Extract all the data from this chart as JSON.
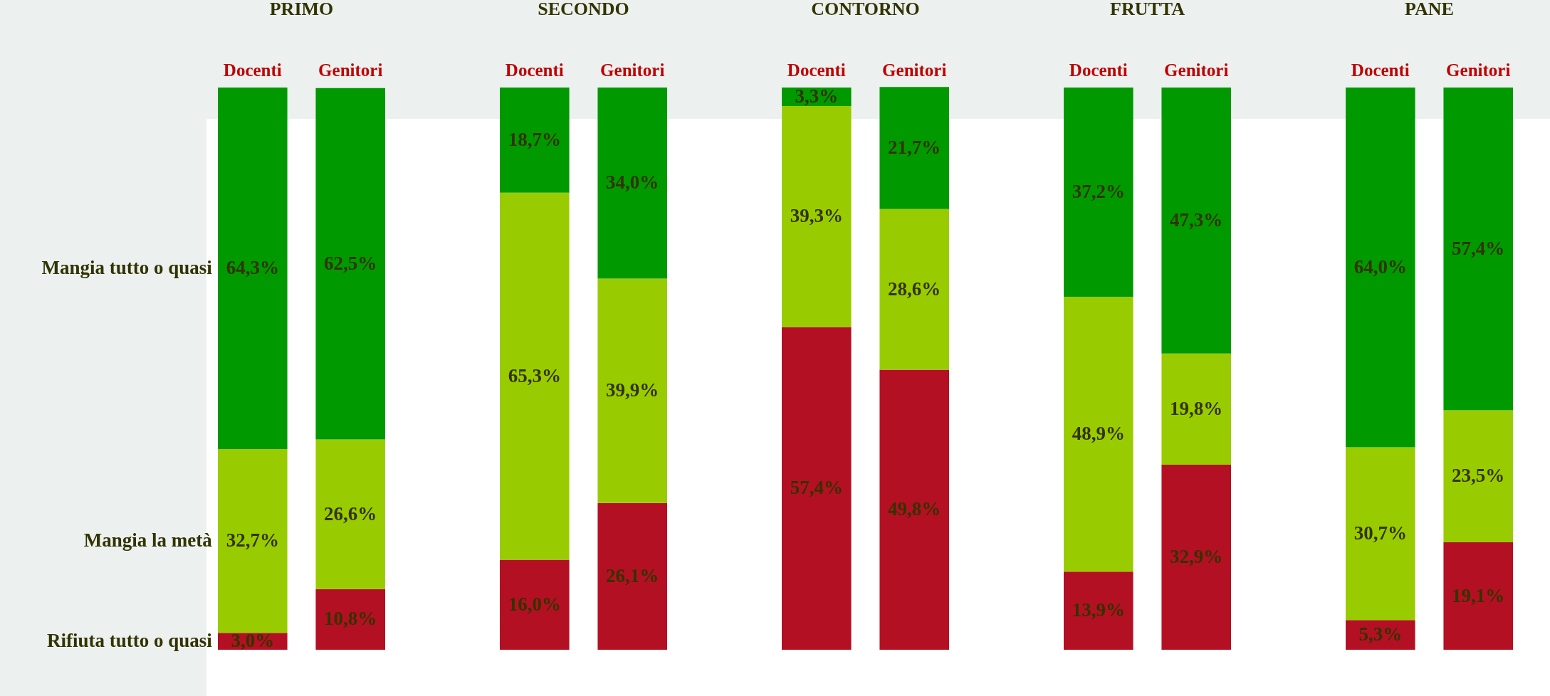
{
  "chart_data": [
    {
      "type": "bar",
      "stacked": true,
      "title": "PRIMO",
      "categories": [
        "Docenti",
        "Genitori"
      ],
      "ylim": [
        0,
        100
      ],
      "tick_labels": "x",
      "series": [
        {
          "name": "Rifiuta tutto o quasi",
          "color": "#b41023",
          "values": [
            3.0,
            10.8
          ],
          "value_labels": [
            "3,0%",
            "10,8%"
          ]
        },
        {
          "name": "Mangia la metà",
          "color": "#99cc00",
          "values": [
            32.7,
            26.6
          ],
          "value_labels": [
            "32,7%",
            "26,6%"
          ]
        },
        {
          "name": "Mangia tutto o quasi",
          "color": "#009900",
          "values": [
            64.3,
            62.5
          ],
          "value_labels": [
            "64,3%",
            "62,5%"
          ]
        }
      ]
    },
    {
      "type": "bar",
      "stacked": true,
      "title": "SECONDO",
      "categories": [
        "Docenti",
        "Genitori"
      ],
      "ylim": [
        0,
        100
      ],
      "tick_labels": "x",
      "series": [
        {
          "color": "#b41023",
          "values": [
            16.0,
            26.1
          ],
          "value_labels": [
            "16,0%",
            "26,1%"
          ]
        },
        {
          "color": "#99cc00",
          "values": [
            65.3,
            39.9
          ],
          "value_labels": [
            "65,3%",
            "39,9%"
          ]
        },
        {
          "color": "#009900",
          "values": [
            18.7,
            34.0
          ],
          "value_labels": [
            "18,7%",
            "34,0%"
          ]
        }
      ]
    },
    {
      "type": "bar",
      "stacked": true,
      "title": "CONTORNO",
      "categories": [
        "Docenti",
        "Genitori"
      ],
      "ylim": [
        0,
        100
      ],
      "tick_labels": "x",
      "series": [
        {
          "color": "#b41023",
          "values": [
            57.4,
            49.8
          ],
          "value_labels": [
            "57,4%",
            "49,8%"
          ]
        },
        {
          "color": "#99cc00",
          "values": [
            39.3,
            28.6
          ],
          "value_labels": [
            "39,3%",
            "28,6%"
          ]
        },
        {
          "color": "#009900",
          "values": [
            3.3,
            21.7
          ],
          "value_labels": [
            "3,3%",
            "21,7%"
          ]
        }
      ]
    },
    {
      "type": "bar",
      "stacked": true,
      "title": "FRUTTA",
      "categories": [
        "Docenti",
        "Genitori"
      ],
      "ylim": [
        0,
        100
      ],
      "tick_labels": "x",
      "series": [
        {
          "color": "#b41023",
          "values": [
            13.9,
            32.9
          ],
          "value_labels": [
            "13,9%",
            "32,9%"
          ]
        },
        {
          "color": "#99cc00",
          "values": [
            48.9,
            19.8
          ],
          "value_labels": [
            "48,9%",
            "19,8%"
          ]
        },
        {
          "color": "#009900",
          "values": [
            37.2,
            47.3
          ],
          "value_labels": [
            "37,2%",
            "47,3%"
          ]
        }
      ]
    },
    {
      "type": "bar",
      "stacked": true,
      "title": "PANE",
      "categories": [
        "Docenti",
        "Genitori"
      ],
      "ylim": [
        0,
        100
      ],
      "tick_labels": "x",
      "series": [
        {
          "color": "#b41023",
          "values": [
            5.3,
            19.1
          ],
          "value_labels": [
            "5,3%",
            "19,1%"
          ]
        },
        {
          "color": "#99cc00",
          "values": [
            30.7,
            23.5
          ],
          "value_labels": [
            "30,7%",
            "23,5%"
          ]
        },
        {
          "color": "#009900",
          "values": [
            64.0,
            57.4
          ],
          "value_labels": [
            "64,0%",
            "57,4%"
          ]
        }
      ]
    }
  ]
}
